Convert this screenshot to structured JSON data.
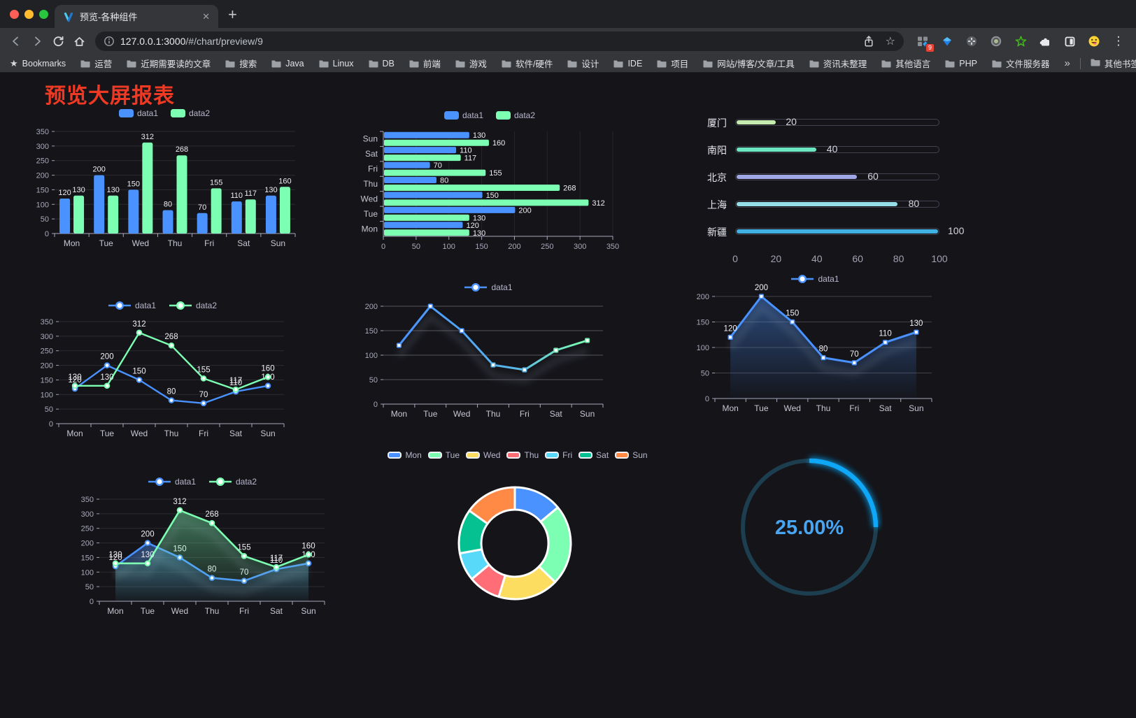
{
  "browser": {
    "tab_title": "预览-各种组件",
    "close_glyph": "✕",
    "new_tab_glyph": "+",
    "url_host": "127.0.0.1:3000",
    "url_path": "/#/chart/preview/9",
    "bookmarks_star_glyph": "★",
    "bookmarks_title": "Bookmarks",
    "bookmarks": [
      "运营",
      "近期需要读的文章",
      "搜索",
      "Java",
      "Linux",
      "DB",
      "前端",
      "游戏",
      "软件/硬件",
      "设计",
      "IDE",
      "项目",
      "网站/博客/文章/工具",
      "资讯未整理",
      "其他语言",
      "PHP",
      "文件服务器"
    ],
    "overflow_glyph": "»",
    "other_bookmarks": "其他书签",
    "extension_badge": "9",
    "star_glyph": "☆",
    "menu_glyph": "⋮"
  },
  "page": {
    "title": "预览大屏报表"
  },
  "chart_data": [
    {
      "type": "bar",
      "categories": [
        "Mon",
        "Tue",
        "Wed",
        "Thu",
        "Fri",
        "Sat",
        "Sun"
      ],
      "series": [
        {
          "name": "data1",
          "color": "#4992ff",
          "values": [
            120,
            200,
            150,
            80,
            70,
            110,
            130
          ]
        },
        {
          "name": "data2",
          "color": "#7cffb2",
          "values": [
            130,
            130,
            312,
            268,
            155,
            117,
            160
          ]
        }
      ],
      "ylim": [
        0,
        350
      ],
      "yticks": [
        0,
        50,
        100,
        150,
        200,
        250,
        300,
        350
      ],
      "show_labels": true,
      "legend": {
        "style": "rect",
        "top": 5
      }
    },
    {
      "type": "hbar",
      "categories": [
        "Mon",
        "Tue",
        "Wed",
        "Thu",
        "Fri",
        "Sat",
        "Sun"
      ],
      "series": [
        {
          "name": "data1",
          "color": "#4992ff",
          "values": [
            120,
            200,
            150,
            80,
            70,
            110,
            130
          ]
        },
        {
          "name": "data2",
          "color": "#7cffb2",
          "values": [
            130,
            130,
            312,
            268,
            155,
            117,
            160
          ]
        }
      ],
      "xlim": [
        0,
        350
      ],
      "xticks": [
        0,
        50,
        100,
        150,
        200,
        250,
        300,
        350
      ],
      "show_labels": true,
      "legend": {
        "style": "rect",
        "top": 6
      }
    },
    {
      "type": "progress",
      "xlim": [
        0,
        100
      ],
      "xticks": [
        0,
        20,
        40,
        60,
        80,
        100
      ],
      "items": [
        {
          "label": "厦门",
          "value": 20,
          "color": "#c4ebad"
        },
        {
          "label": "南阳",
          "value": 40,
          "color": "#6be6c1"
        },
        {
          "label": "北京",
          "value": 60,
          "color": "#a0a7e6"
        },
        {
          "label": "上海",
          "value": 80,
          "color": "#96dee8"
        },
        {
          "label": "新疆",
          "value": 100,
          "color": "#3fb1e3"
        }
      ]
    },
    {
      "type": "line",
      "categories": [
        "Mon",
        "Tue",
        "Wed",
        "Thu",
        "Fri",
        "Sat",
        "Sun"
      ],
      "series": [
        {
          "name": "data1",
          "color": "#4992ff",
          "values": [
            120,
            200,
            150,
            80,
            70,
            110,
            130
          ]
        },
        {
          "name": "data2",
          "color": "#7cffb2",
          "values": [
            130,
            130,
            312,
            268,
            155,
            117,
            160
          ]
        }
      ],
      "ylim": [
        0,
        350
      ],
      "yticks": [
        0,
        50,
        100,
        150,
        200,
        250,
        300,
        350
      ],
      "show_labels": true,
      "marker": "circle",
      "line_width": 2.4,
      "legend": {
        "style": "line",
        "top": 6
      }
    },
    {
      "type": "line",
      "categories": [
        "Mon",
        "Tue",
        "Wed",
        "Thu",
        "Fri",
        "Sat",
        "Sun"
      ],
      "series": [
        {
          "name": "data1",
          "color": "#4992ff",
          "gradient": [
            "#4992ff",
            "#7cffb2"
          ],
          "values": [
            120,
            200,
            150,
            80,
            70,
            110,
            130
          ]
        }
      ],
      "ylim": [
        0,
        200
      ],
      "yticks": [
        0,
        50,
        100,
        150,
        200
      ],
      "show_labels": false,
      "marker": "square",
      "line_width": 3,
      "shadow": true,
      "grid_color": "rgba(255,255,255,0.28)",
      "legend": {
        "style": "line",
        "top": 6
      }
    },
    {
      "type": "line",
      "categories": [
        "Mon",
        "Tue",
        "Wed",
        "Thu",
        "Fri",
        "Sat",
        "Sun"
      ],
      "series": [
        {
          "name": "data1",
          "color": "#4992ff",
          "values": [
            120,
            200,
            150,
            80,
            70,
            110,
            130
          ]
        }
      ],
      "ylim": [
        0,
        200
      ],
      "yticks": [
        0,
        50,
        100,
        150,
        200
      ],
      "area": true,
      "show_labels": true,
      "marker": "square",
      "line_width": 3,
      "shadow": true,
      "grid_color": "rgba(255,255,255,0.20)",
      "legend": {
        "style": "line",
        "top": 4
      }
    },
    {
      "type": "line",
      "categories": [
        "Mon",
        "Tue",
        "Wed",
        "Thu",
        "Fri",
        "Sat",
        "Sun"
      ],
      "series": [
        {
          "name": "data1",
          "color": "#4992ff",
          "values": [
            120,
            200,
            150,
            80,
            70,
            110,
            130
          ]
        },
        {
          "name": "data2",
          "color": "#7cffb2",
          "values": [
            130,
            130,
            312,
            268,
            155,
            117,
            160
          ]
        }
      ],
      "ylim": [
        0,
        350
      ],
      "yticks": [
        0,
        50,
        100,
        150,
        200,
        250,
        300,
        350
      ],
      "area": true,
      "show_labels": true,
      "marker": "circle",
      "line_width": 2.6,
      "shadow": true,
      "legend": {
        "style": "line",
        "top": 6
      }
    },
    {
      "type": "pie",
      "labels": [
        "Mon",
        "Tue",
        "Wed",
        "Thu",
        "Fri",
        "Sat",
        "Sun"
      ],
      "values": [
        120,
        200,
        150,
        80,
        70,
        110,
        130
      ],
      "colors": [
        "#4992ff",
        "#7cffb2",
        "#fddd60",
        "#ff6e76",
        "#58d9f9",
        "#05c091",
        "#ff8a45"
      ],
      "legend": {
        "style": "rect",
        "bordered": true,
        "top": 8
      }
    },
    {
      "type": "gauge",
      "value": 25,
      "label": "25.00%",
      "color": "#0fa7f7",
      "track_color": "#1d3e4e",
      "text_color": "#49a5f0"
    }
  ]
}
